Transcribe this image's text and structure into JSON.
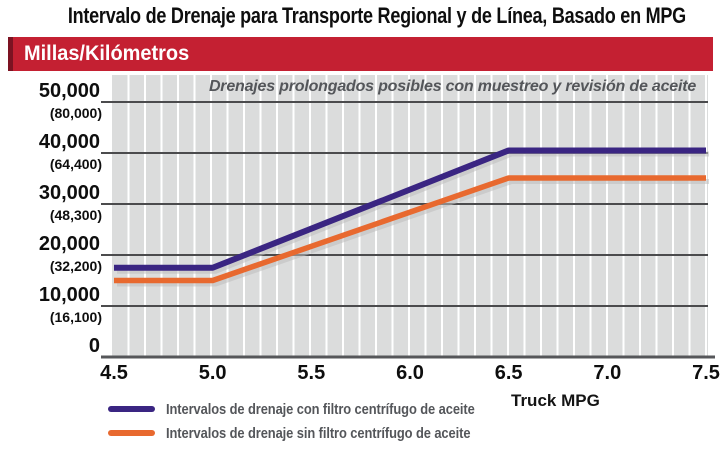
{
  "colors": {
    "banner_red": "#c42032",
    "banner_edge_dark_red": "#7c1322",
    "plot_background_gray": "#dbdcdc",
    "vertical_stripe_white": "#ffffff",
    "grid_dark": "#4b4b4d",
    "axis_dark": "#56575a",
    "line_shadow_gray": "#bdbdbd",
    "text_gray": "#54565a",
    "text_black": "#0e0e0e",
    "purple": "#3a2582",
    "orange": "#e8692f"
  },
  "chart_data": {
    "type": "line",
    "title": "Intervalo de Drenaje para Transporte Regional y de Línea, Basado en MPG",
    "banner": "Millas/Kilómetros",
    "annotation": "Drenajes prolongados posibles con muestreo y revisión de aceite",
    "xlabel": "Truck MPG",
    "xlim": [
      4.5,
      7.5
    ],
    "ylim": [
      0,
      55000
    ],
    "grid": "dark horizontal line每 not invented — dark horizontal gridlines every 10,000 miles; fine white vertical stripes over gray panel",
    "legend_position": "bottom-left",
    "x_tick_labels": [
      "4.5",
      "5.0",
      "5.5",
      "6.0",
      "6.5",
      "7.0",
      "7.5"
    ],
    "x_tick_values": [
      4.5,
      5.0,
      5.5,
      6.0,
      6.5,
      7.0,
      7.5
    ],
    "y_ticks": [
      {
        "value": 50000,
        "miles": "50,000",
        "km": "(80,000)"
      },
      {
        "value": 40000,
        "miles": "40,000",
        "km": "(64,400)"
      },
      {
        "value": 30000,
        "miles": "30,000",
        "km": "(48,300)"
      },
      {
        "value": 20000,
        "miles": "20,000",
        "km": "(32,200)"
      },
      {
        "value": 10000,
        "miles": "10,000",
        "km": "(16,100)"
      },
      {
        "value": 0,
        "miles": "0",
        "km": ""
      }
    ],
    "series": [
      {
        "name": "Intervalos de drenaje con filtro centrífugo de aceite",
        "color": "#3a2582",
        "x": [
          4.5,
          5.0,
          6.5,
          7.5
        ],
        "y": [
          17500,
          17500,
          40500,
          40500
        ]
      },
      {
        "name": "Intervalos de drenaje sin filtro centrífugo de aceite",
        "color": "#e8692f",
        "x": [
          4.5,
          5.0,
          6.5,
          7.5
        ],
        "y": [
          15000,
          15000,
          35100,
          35100
        ]
      }
    ]
  }
}
